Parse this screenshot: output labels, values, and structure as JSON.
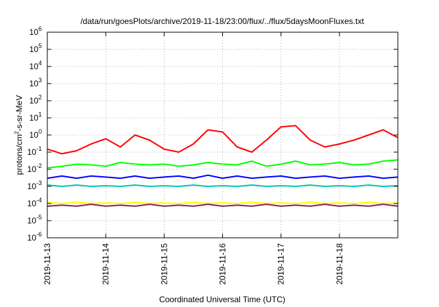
{
  "chart_data": {
    "type": "line",
    "title": "/data/run/goesPlots/archive/2019-11-18/23:00/flux/../flux/5daysMoonFluxes.txt",
    "xlabel": "Coordinated Universal Time (UTC)",
    "ylabel": {
      "pre": "protons/cm",
      "sup": "2",
      "post": "-s-sr-MeV"
    },
    "x_range": [
      "2019-11-13",
      "2019-11-19"
    ],
    "x_ticks": [
      "2019-11-13",
      "2019-11-14",
      "2019-11-15",
      "2019-11-16",
      "2019-11-17",
      "2019-11-18"
    ],
    "y_scale": "log",
    "ylim": [
      1e-06,
      1000000.0
    ],
    "y_ticks": [
      {
        "base": "10",
        "exp": "-6"
      },
      {
        "base": "10",
        "exp": "-5"
      },
      {
        "base": "10",
        "exp": "-4"
      },
      {
        "base": "10",
        "exp": "-3"
      },
      {
        "base": "10",
        "exp": "-2"
      },
      {
        "base": "10",
        "exp": "-1"
      },
      {
        "base": "10",
        "exp": "0"
      },
      {
        "base": "10",
        "exp": "1"
      },
      {
        "base": "10",
        "exp": "2"
      },
      {
        "base": "10",
        "exp": "3"
      },
      {
        "base": "10",
        "exp": "4"
      },
      {
        "base": "10",
        "exp": "5"
      },
      {
        "base": "10",
        "exp": "6"
      }
    ],
    "grid": true,
    "series": [
      {
        "color": "#ff0000",
        "x": [
          "2019-11-13 00:00",
          "2019-11-13 06:00",
          "2019-11-13 12:00",
          "2019-11-13 18:00",
          "2019-11-14 00:00",
          "2019-11-14 06:00",
          "2019-11-14 12:00",
          "2019-11-14 18:00",
          "2019-11-15 00:00",
          "2019-11-15 06:00",
          "2019-11-15 12:00",
          "2019-11-15 18:00",
          "2019-11-16 00:00",
          "2019-11-16 06:00",
          "2019-11-16 12:00",
          "2019-11-16 18:00",
          "2019-11-17 00:00",
          "2019-11-17 06:00",
          "2019-11-17 12:00",
          "2019-11-17 18:00",
          "2019-11-18 00:00",
          "2019-11-18 06:00",
          "2019-11-18 12:00",
          "2019-11-18 18:00",
          "2019-11-19 00:00"
        ],
        "y": [
          0.15,
          0.08,
          0.12,
          0.3,
          0.6,
          0.2,
          1.0,
          0.5,
          0.15,
          0.1,
          0.3,
          2.0,
          1.5,
          0.2,
          0.1,
          0.5,
          3.0,
          3.5,
          0.5,
          0.2,
          0.3,
          0.5,
          1.0,
          2.0,
          0.7
        ]
      },
      {
        "color": "#00ff00",
        "x": [
          "2019-11-13 00:00",
          "2019-11-13 06:00",
          "2019-11-13 12:00",
          "2019-11-13 18:00",
          "2019-11-14 00:00",
          "2019-11-14 06:00",
          "2019-11-14 12:00",
          "2019-11-14 18:00",
          "2019-11-15 00:00",
          "2019-11-15 06:00",
          "2019-11-15 12:00",
          "2019-11-15 18:00",
          "2019-11-16 00:00",
          "2019-11-16 06:00",
          "2019-11-16 12:00",
          "2019-11-16 18:00",
          "2019-11-17 00:00",
          "2019-11-17 06:00",
          "2019-11-17 12:00",
          "2019-11-17 18:00",
          "2019-11-18 00:00",
          "2019-11-18 06:00",
          "2019-11-18 12:00",
          "2019-11-18 18:00",
          "2019-11-19 00:00"
        ],
        "y": [
          0.012,
          0.015,
          0.02,
          0.018,
          0.015,
          0.025,
          0.02,
          0.018,
          0.02,
          0.015,
          0.018,
          0.025,
          0.02,
          0.018,
          0.03,
          0.015,
          0.02,
          0.03,
          0.018,
          0.02,
          0.025,
          0.018,
          0.02,
          0.03,
          0.035
        ]
      },
      {
        "color": "#0000ff",
        "x": [
          "2019-11-13 00:00",
          "2019-11-13 06:00",
          "2019-11-13 12:00",
          "2019-11-13 18:00",
          "2019-11-14 00:00",
          "2019-11-14 06:00",
          "2019-11-14 12:00",
          "2019-11-14 18:00",
          "2019-11-15 00:00",
          "2019-11-15 06:00",
          "2019-11-15 12:00",
          "2019-11-15 18:00",
          "2019-11-16 00:00",
          "2019-11-16 06:00",
          "2019-11-16 12:00",
          "2019-11-16 18:00",
          "2019-11-17 00:00",
          "2019-11-17 06:00",
          "2019-11-17 12:00",
          "2019-11-17 18:00",
          "2019-11-18 00:00",
          "2019-11-18 06:00",
          "2019-11-18 12:00",
          "2019-11-18 18:00",
          "2019-11-19 00:00"
        ],
        "y": [
          0.003,
          0.004,
          0.003,
          0.004,
          0.0035,
          0.003,
          0.004,
          0.003,
          0.0035,
          0.004,
          0.003,
          0.0045,
          0.003,
          0.004,
          0.003,
          0.0035,
          0.004,
          0.003,
          0.0035,
          0.004,
          0.003,
          0.0035,
          0.004,
          0.003,
          0.0035
        ]
      },
      {
        "color": "#00c8b4",
        "x": [
          "2019-11-13 00:00",
          "2019-11-13 06:00",
          "2019-11-13 12:00",
          "2019-11-13 18:00",
          "2019-11-14 00:00",
          "2019-11-14 06:00",
          "2019-11-14 12:00",
          "2019-11-14 18:00",
          "2019-11-15 00:00",
          "2019-11-15 06:00",
          "2019-11-15 12:00",
          "2019-11-15 18:00",
          "2019-11-16 00:00",
          "2019-11-16 06:00",
          "2019-11-16 12:00",
          "2019-11-16 18:00",
          "2019-11-17 00:00",
          "2019-11-17 06:00",
          "2019-11-17 12:00",
          "2019-11-17 18:00",
          "2019-11-18 00:00",
          "2019-11-18 06:00",
          "2019-11-18 12:00",
          "2019-11-18 18:00",
          "2019-11-19 00:00"
        ],
        "y": [
          0.0012,
          0.001,
          0.0012,
          0.001,
          0.0011,
          0.001,
          0.0012,
          0.001,
          0.0011,
          0.001,
          0.0012,
          0.001,
          0.0011,
          0.001,
          0.0012,
          0.001,
          0.0011,
          0.001,
          0.0012,
          0.001,
          0.0011,
          0.001,
          0.0012,
          0.001,
          0.0011
        ]
      },
      {
        "color": "#ffff00",
        "x": [
          "2019-11-13 00:00",
          "2019-11-13 06:00",
          "2019-11-13 12:00",
          "2019-11-13 18:00",
          "2019-11-14 00:00",
          "2019-11-14 06:00",
          "2019-11-14 12:00",
          "2019-11-14 18:00",
          "2019-11-15 00:00",
          "2019-11-15 06:00",
          "2019-11-15 12:00",
          "2019-11-15 18:00",
          "2019-11-16 00:00",
          "2019-11-16 06:00",
          "2019-11-16 12:00",
          "2019-11-16 18:00",
          "2019-11-17 00:00",
          "2019-11-17 06:00",
          "2019-11-17 12:00",
          "2019-11-17 18:00",
          "2019-11-18 00:00",
          "2019-11-18 06:00",
          "2019-11-18 12:00",
          "2019-11-18 18:00",
          "2019-11-19 00:00"
        ],
        "y": [
          0.00012,
          0.0001,
          0.00012,
          0.0001,
          0.00011,
          0.0001,
          0.00012,
          0.0001,
          0.00011,
          0.0001,
          0.00012,
          0.0001,
          0.00011,
          0.0001,
          0.00012,
          0.0001,
          0.00011,
          0.0001,
          0.00012,
          0.0001,
          0.00011,
          0.0001,
          0.00012,
          0.0001,
          0.00011
        ]
      },
      {
        "color": "#8b2252",
        "x": [
          "2019-11-13 00:00",
          "2019-11-13 06:00",
          "2019-11-13 12:00",
          "2019-11-13 18:00",
          "2019-11-14 00:00",
          "2019-11-14 06:00",
          "2019-11-14 12:00",
          "2019-11-14 18:00",
          "2019-11-15 00:00",
          "2019-11-15 06:00",
          "2019-11-15 12:00",
          "2019-11-15 18:00",
          "2019-11-16 00:00",
          "2019-11-16 06:00",
          "2019-11-16 12:00",
          "2019-11-16 18:00",
          "2019-11-17 00:00",
          "2019-11-17 06:00",
          "2019-11-17 12:00",
          "2019-11-17 18:00",
          "2019-11-18 00:00",
          "2019-11-18 06:00",
          "2019-11-18 12:00",
          "2019-11-18 18:00",
          "2019-11-19 00:00"
        ],
        "y": [
          7e-05,
          8e-05,
          7e-05,
          9e-05,
          7e-05,
          8e-05,
          7e-05,
          9e-05,
          7e-05,
          8e-05,
          7e-05,
          9e-05,
          7e-05,
          8e-05,
          7e-05,
          9e-05,
          7e-05,
          8e-05,
          7e-05,
          9e-05,
          7e-05,
          8e-05,
          7e-05,
          9e-05,
          7e-05
        ]
      }
    ]
  }
}
